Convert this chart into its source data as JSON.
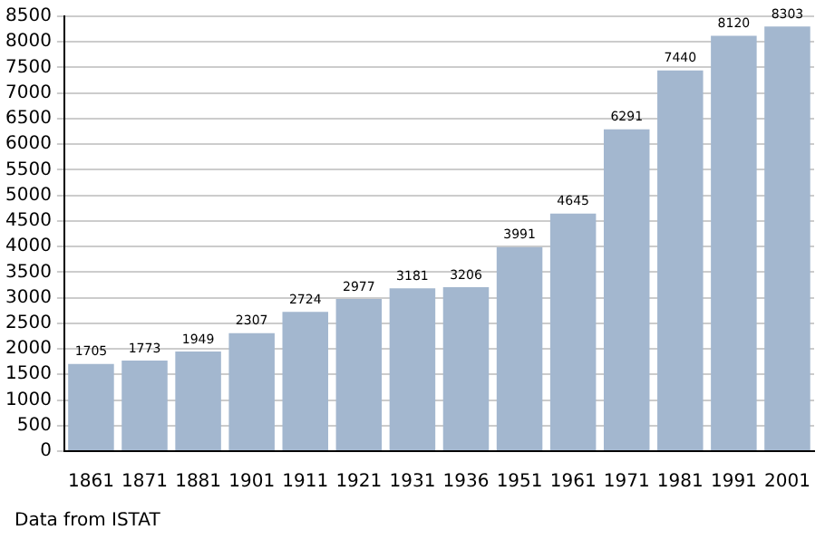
{
  "chart_data": {
    "type": "bar",
    "categories": [
      "1861",
      "1871",
      "1881",
      "1901",
      "1911",
      "1921",
      "1931",
      "1936",
      "1951",
      "1961",
      "1971",
      "1981",
      "1991",
      "2001"
    ],
    "values": [
      1705,
      1773,
      1949,
      2307,
      2724,
      2977,
      3181,
      3206,
      3991,
      4645,
      6291,
      7440,
      8120,
      8303
    ],
    "color": "#a3b7cf",
    "ylim": [
      0,
      8500
    ],
    "yticks": [
      0,
      500,
      1000,
      1500,
      2000,
      2500,
      3000,
      3500,
      4000,
      4500,
      5000,
      5500,
      6000,
      6500,
      7000,
      7500,
      8000,
      8500
    ],
    "grid": "y",
    "data_labels": true,
    "annotations": [
      "Data from ISTAT"
    ]
  }
}
